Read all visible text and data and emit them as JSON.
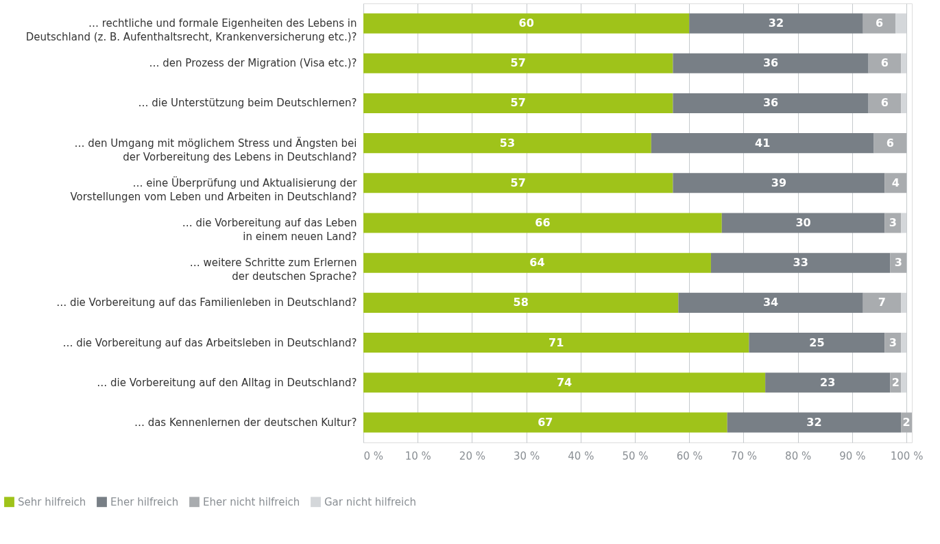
{
  "chart_data": {
    "type": "bar",
    "orientation": "horizontal",
    "stacked": true,
    "categories": [
      "… rechtliche und formale Eigenheiten des Lebens in\nDeutschland (z. B. Aufenthaltsrecht, Krankenversicherung etc.)?",
      "… den Prozess der Migration (Visa etc.)?",
      "… die Unterstützung beim Deutschlernen?",
      "… den Umgang mit möglichem Stress und Ängsten bei\nder Vorbereitung des Lebens in Deutschland?",
      "… eine Überprüfung und Aktualisierung der\nVorstellungen vom Leben und Arbeiten in Deutschland?",
      "… die Vorbereitung auf das Leben\nin einem neuen Land?",
      "… weitere Schritte zum Erlernen\nder deutschen Sprache?",
      "… die Vorbereitung auf das Familienleben in Deutschland?",
      "… die Vorbereitung auf das Arbeitsleben in Deutschland?",
      "… die Vorbereitung auf den Alltag in Deutschland?",
      "… das Kennenlernen der deutschen Kultur?"
    ],
    "series": [
      {
        "name": "Sehr hilfreich",
        "color": "#9fc31a",
        "values": [
          60,
          57,
          57,
          53,
          57,
          66,
          64,
          58,
          71,
          74,
          67
        ]
      },
      {
        "name": "Eher hilfreich",
        "color": "#787f86",
        "values": [
          32,
          36,
          36,
          41,
          39,
          30,
          33,
          34,
          25,
          23,
          32
        ]
      },
      {
        "name": "Eher nicht hilfreich",
        "color": "#a9acaf",
        "values": [
          6,
          6,
          6,
          6,
          4,
          3,
          3,
          7,
          3,
          2,
          2
        ]
      },
      {
        "name": "Gar nicht hilfreich",
        "color": "#d4d7da",
        "values": [
          2,
          1,
          1,
          0,
          0,
          1,
          0,
          1,
          1,
          1,
          0
        ],
        "value_labels": [
          null,
          null,
          null,
          null,
          null,
          null,
          null,
          null,
          null,
          null,
          null
        ]
      }
    ],
    "xlim": [
      0,
      101
    ],
    "data_labels": true,
    "xticks": [
      {
        "value": 0,
        "label": "0 %"
      },
      {
        "value": 10,
        "label": "10 %"
      },
      {
        "value": 20,
        "label": "20 %"
      },
      {
        "value": 30,
        "label": "30 %"
      },
      {
        "value": 40,
        "label": "40 %"
      },
      {
        "value": 50,
        "label": "50 %"
      },
      {
        "value": 60,
        "label": "60 %"
      },
      {
        "value": 70,
        "label": "70 %"
      },
      {
        "value": 80,
        "label": "80 %"
      },
      {
        "value": 90,
        "label": "90 %"
      },
      {
        "value": 100,
        "label": "100 %"
      }
    ],
    "grid": "x",
    "legend": "bottom left"
  }
}
